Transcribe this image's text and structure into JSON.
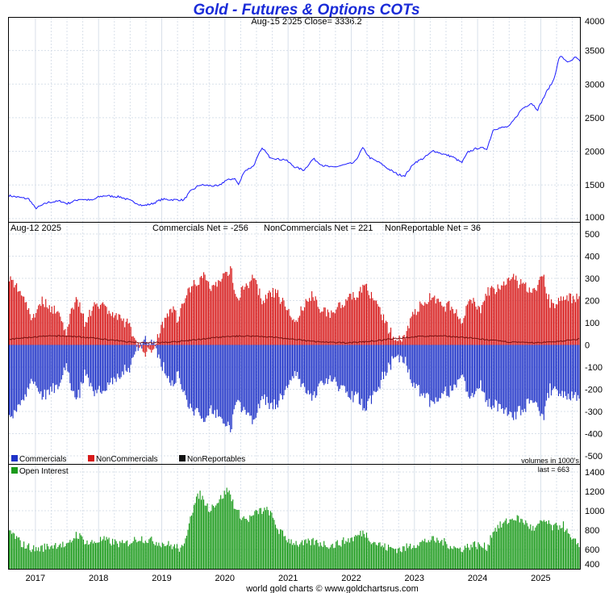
{
  "title": "Gold - Futures & Options COTs",
  "subtitle": "Aug-15  2025   Close= 3336.2",
  "footer": "world gold charts © www.goldchartsrus.com",
  "colors": {
    "price": "#1a1aff",
    "commercials": "#1e32c8",
    "noncommercials": "#d71a1a",
    "nonreportables": "#111111",
    "open_interest": "#1a9a1a",
    "grid": "#d8e0ea"
  },
  "chart_data": [
    {
      "type": "line",
      "series": [
        {
          "values": []
        }
      ],
      "x": {
        "start": 2016.58,
        "end": 2025.62
      },
      "ylim": [
        950,
        4000
      ],
      "yticks": [
        1000,
        1500,
        2000,
        2500,
        3000,
        3500,
        4000
      ],
      "grid": true,
      "anchors": [
        [
          2016.58,
          1340
        ],
        [
          2016.9,
          1290
        ],
        [
          2017.0,
          1150
        ],
        [
          2017.2,
          1240
        ],
        [
          2017.4,
          1260
        ],
        [
          2017.5,
          1220
        ],
        [
          2017.7,
          1290
        ],
        [
          2017.9,
          1270
        ],
        [
          2018.0,
          1320
        ],
        [
          2018.1,
          1340
        ],
        [
          2018.35,
          1320
        ],
        [
          2018.6,
          1230
        ],
        [
          2018.7,
          1190
        ],
        [
          2018.85,
          1220
        ],
        [
          2019.0,
          1285
        ],
        [
          2019.35,
          1275
        ],
        [
          2019.45,
          1400
        ],
        [
          2019.6,
          1500
        ],
        [
          2019.75,
          1490
        ],
        [
          2019.9,
          1480
        ],
        [
          2020.0,
          1560
        ],
        [
          2020.15,
          1600
        ],
        [
          2020.22,
          1500
        ],
        [
          2020.3,
          1700
        ],
        [
          2020.45,
          1780
        ],
        [
          2020.55,
          1980
        ],
        [
          2020.6,
          2050
        ],
        [
          2020.7,
          1920
        ],
        [
          2020.85,
          1880
        ],
        [
          2020.95,
          1880
        ],
        [
          2021.1,
          1770
        ],
        [
          2021.25,
          1720
        ],
        [
          2021.4,
          1890
        ],
        [
          2021.55,
          1790
        ],
        [
          2021.7,
          1760
        ],
        [
          2021.9,
          1800
        ],
        [
          2022.05,
          1830
        ],
        [
          2022.18,
          2050
        ],
        [
          2022.3,
          1900
        ],
        [
          2022.45,
          1830
        ],
        [
          2022.6,
          1730
        ],
        [
          2022.75,
          1650
        ],
        [
          2022.85,
          1640
        ],
        [
          2023.0,
          1830
        ],
        [
          2023.15,
          1900
        ],
        [
          2023.3,
          2010
        ],
        [
          2023.45,
          1960
        ],
        [
          2023.6,
          1920
        ],
        [
          2023.75,
          1830
        ],
        [
          2023.85,
          1990
        ],
        [
          2024.0,
          2050
        ],
        [
          2024.15,
          2040
        ],
        [
          2024.25,
          2330
        ],
        [
          2024.5,
          2370
        ],
        [
          2024.7,
          2630
        ],
        [
          2024.85,
          2720
        ],
        [
          2024.95,
          2620
        ],
        [
          2025.1,
          2900
        ],
        [
          2025.2,
          3050
        ],
        [
          2025.3,
          3420
        ],
        [
          2025.45,
          3320
        ],
        [
          2025.55,
          3400
        ],
        [
          2025.62,
          3336
        ]
      ]
    },
    {
      "type": "bar",
      "header_date": "Aug-12  2025",
      "net_labels": [
        "Commercials Net = -256",
        "NonCommercials Net = 221",
        "NonReportable Net = 36"
      ],
      "ylim": [
        -500,
        500
      ],
      "yticks": [
        -500,
        -400,
        -300,
        -200,
        -100,
        0,
        100,
        200,
        300,
        400,
        500
      ],
      "legend": [
        "Commercials",
        "NonCommercials",
        "NonReportables"
      ],
      "units_note": "volumes in 1000's",
      "series": [
        {
          "values": []
        },
        {
          "values": []
        },
        {
          "values": []
        }
      ],
      "anchors": [
        [
          2016.58,
          300
        ],
        [
          2016.8,
          230
        ],
        [
          2016.95,
          120
        ],
        [
          2017.1,
          200
        ],
        [
          2017.35,
          150
        ],
        [
          2017.5,
          60
        ],
        [
          2017.65,
          230
        ],
        [
          2017.8,
          90
        ],
        [
          2017.95,
          200
        ],
        [
          2018.1,
          170
        ],
        [
          2018.3,
          120
        ],
        [
          2018.45,
          100
        ],
        [
          2018.55,
          50
        ],
        [
          2018.65,
          -10
        ],
        [
          2018.75,
          -40
        ],
        [
          2018.85,
          -20
        ],
        [
          2019.0,
          80
        ],
        [
          2019.15,
          180
        ],
        [
          2019.25,
          120
        ],
        [
          2019.45,
          260
        ],
        [
          2019.65,
          310
        ],
        [
          2019.8,
          260
        ],
        [
          2019.95,
          300
        ],
        [
          2020.1,
          340
        ],
        [
          2020.2,
          200
        ],
        [
          2020.3,
          260
        ],
        [
          2020.45,
          300
        ],
        [
          2020.6,
          200
        ],
        [
          2020.8,
          240
        ],
        [
          2020.95,
          180
        ],
        [
          2021.1,
          100
        ],
        [
          2021.2,
          150
        ],
        [
          2021.4,
          230
        ],
        [
          2021.55,
          150
        ],
        [
          2021.7,
          140
        ],
        [
          2021.9,
          200
        ],
        [
          2022.1,
          220
        ],
        [
          2022.2,
          280
        ],
        [
          2022.35,
          200
        ],
        [
          2022.5,
          130
        ],
        [
          2022.6,
          60
        ],
        [
          2022.75,
          30
        ],
        [
          2022.85,
          40
        ],
        [
          2023.0,
          150
        ],
        [
          2023.2,
          200
        ],
        [
          2023.3,
          230
        ],
        [
          2023.45,
          160
        ],
        [
          2023.6,
          180
        ],
        [
          2023.75,
          100
        ],
        [
          2023.9,
          210
        ],
        [
          2024.05,
          150
        ],
        [
          2024.15,
          240
        ],
        [
          2024.4,
          260
        ],
        [
          2024.55,
          300
        ],
        [
          2024.75,
          260
        ],
        [
          2024.9,
          250
        ],
        [
          2025.05,
          310
        ],
        [
          2025.15,
          180
        ],
        [
          2025.3,
          200
        ],
        [
          2025.45,
          210
        ],
        [
          2025.62,
          221
        ]
      ]
    },
    {
      "type": "bar",
      "legend": [
        "Open Interest"
      ],
      "last_label": "last = 663",
      "ylim": [
        400,
        1400
      ],
      "yticks": [
        400,
        600,
        800,
        1000,
        1200,
        1400
      ],
      "series": [
        {
          "values": []
        }
      ],
      "anchors": [
        [
          2016.58,
          800
        ],
        [
          2016.8,
          650
        ],
        [
          2017.0,
          600
        ],
        [
          2017.4,
          660
        ],
        [
          2017.5,
          620
        ],
        [
          2017.65,
          760
        ],
        [
          2017.85,
          660
        ],
        [
          2018.05,
          700
        ],
        [
          2018.4,
          650
        ],
        [
          2018.65,
          720
        ],
        [
          2018.9,
          680
        ],
        [
          2019.1,
          650
        ],
        [
          2019.35,
          600
        ],
        [
          2019.45,
          950
        ],
        [
          2019.6,
          1180
        ],
        [
          2019.75,
          1020
        ],
        [
          2019.9,
          1100
        ],
        [
          2020.05,
          1220
        ],
        [
          2020.2,
          980
        ],
        [
          2020.35,
          900
        ],
        [
          2020.55,
          1000
        ],
        [
          2020.7,
          1000
        ],
        [
          2020.85,
          800
        ],
        [
          2021.0,
          700
        ],
        [
          2021.2,
          650
        ],
        [
          2021.4,
          680
        ],
        [
          2021.7,
          640
        ],
        [
          2022.05,
          720
        ],
        [
          2022.2,
          780
        ],
        [
          2022.35,
          680
        ],
        [
          2022.55,
          620
        ],
        [
          2022.8,
          600
        ],
        [
          2023.0,
          650
        ],
        [
          2023.25,
          700
        ],
        [
          2023.45,
          680
        ],
        [
          2023.7,
          600
        ],
        [
          2023.95,
          650
        ],
        [
          2024.15,
          620
        ],
        [
          2024.25,
          800
        ],
        [
          2024.45,
          880
        ],
        [
          2024.6,
          930
        ],
        [
          2024.75,
          880
        ],
        [
          2024.9,
          800
        ],
        [
          2025.05,
          900
        ],
        [
          2025.2,
          820
        ],
        [
          2025.35,
          860
        ],
        [
          2025.5,
          680
        ],
        [
          2025.62,
          663
        ]
      ]
    }
  ],
  "x_axis": {
    "labels": [
      "2017",
      "2018",
      "2019",
      "2020",
      "2021",
      "2022",
      "2023",
      "2024",
      "2025"
    ],
    "year_positions": [
      2017,
      2018,
      2019,
      2020,
      2021,
      2022,
      2023,
      2024,
      2025
    ]
  }
}
